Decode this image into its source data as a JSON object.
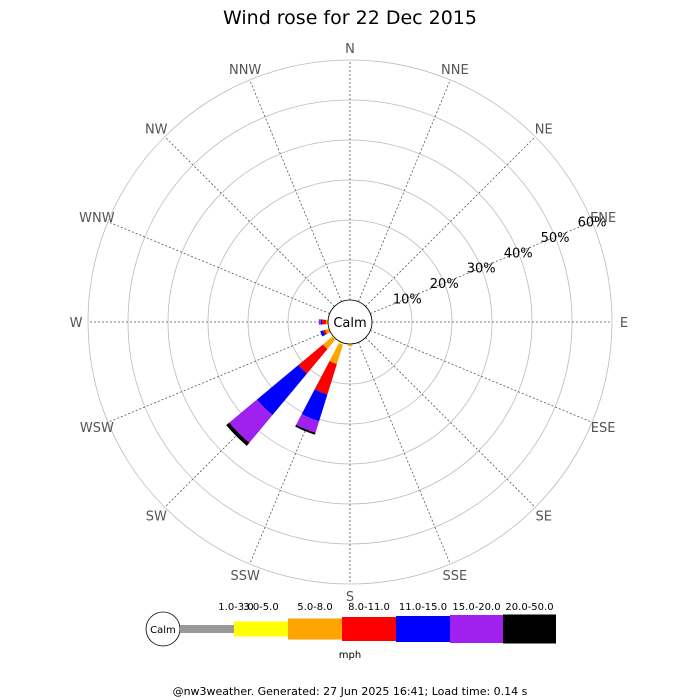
{
  "chart_data": {
    "type": "wind-rose",
    "title": "Wind rose for 22 Dec 2015",
    "directions": [
      "N",
      "NNE",
      "NE",
      "ENE",
      "E",
      "ESE",
      "SE",
      "SSE",
      "S",
      "SSW",
      "SW",
      "WSW",
      "W",
      "WNW",
      "NW",
      "NNW"
    ],
    "ring_labels": [
      "10%",
      "20%",
      "30%",
      "40%",
      "50%",
      "60%"
    ],
    "rmax": 60,
    "calm_label": "Calm",
    "unit": "mph",
    "speed_bins": [
      {
        "label": "1.0-3.0",
        "color": "#999999"
      },
      {
        "label": "3.0-5.0",
        "color": "#ffff00"
      },
      {
        "label": "5.0-8.0",
        "color": "#ffa500"
      },
      {
        "label": "8.0-11.0",
        "color": "#ff0000"
      },
      {
        "label": "11.0-15.0",
        "color": "#0000ff"
      },
      {
        "label": "15.0-20.0",
        "color": "#a020f0"
      },
      {
        "label": "20.0-50.0",
        "color": "#000000"
      }
    ],
    "series": [
      {
        "direction": "SSW",
        "values": [
          0.0,
          0.5,
          5.0,
          8.0,
          7.0,
          3.0,
          0.5
        ]
      },
      {
        "direction": "SW",
        "values": [
          0.0,
          0.3,
          3.0,
          8.0,
          13.5,
          9.0,
          1.0
        ]
      },
      {
        "direction": "WSW",
        "values": [
          0.0,
          0.0,
          1.0,
          0.5,
          0.8,
          0.0,
          0.0
        ]
      },
      {
        "direction": "W",
        "values": [
          0.0,
          0.0,
          0.5,
          1.0,
          0.3,
          0.5,
          0.0
        ]
      },
      {
        "direction": "S",
        "values": [
          0.0,
          0.3,
          0.3,
          0.0,
          0.0,
          0.0,
          0.0
        ]
      }
    ],
    "grid": true
  },
  "footer": "@nw3weather. Generated: 27 Jun 2025 16:41; Load time: 0.14 s"
}
